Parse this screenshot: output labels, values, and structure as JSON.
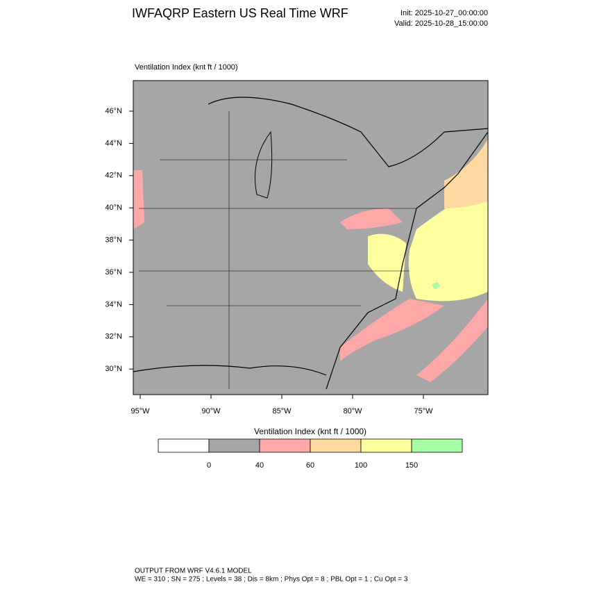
{
  "header": {
    "title": "IWFAQRP Eastern US Real Time WRF",
    "init": "Init: 2025-10-27_00:00:00",
    "valid": "Valid: 2025-10-28_15:00:00"
  },
  "map": {
    "label": "Ventilation Index   (knt ft / 1000)",
    "lat_labels": [
      "46°N",
      "44°N",
      "42°N",
      "40°N",
      "38°N",
      "36°N",
      "34°N",
      "32°N",
      "30°N"
    ],
    "lon_labels": [
      "95°W",
      "90°W",
      "85°W",
      "80°W",
      "75°W"
    ]
  },
  "colorbar": {
    "title": "Ventilation Index  (knt ft / 1000)",
    "levels": [
      0,
      40,
      60,
      100,
      150
    ],
    "colors": [
      "#ffffff",
      "#a6a6a6",
      "#ffa8a8",
      "#ffd9a0",
      "#ffffa0",
      "#a6ffa6"
    ]
  },
  "footer": {
    "line1": "OUTPUT FROM WRF V4.6.1 MODEL",
    "line2": "WE = 310 ; SN = 275 ; Levels = 38 ; Dis = 8km ; Phys Opt = 8 ; PBL Opt = 1 ; Cu Opt = 3"
  }
}
